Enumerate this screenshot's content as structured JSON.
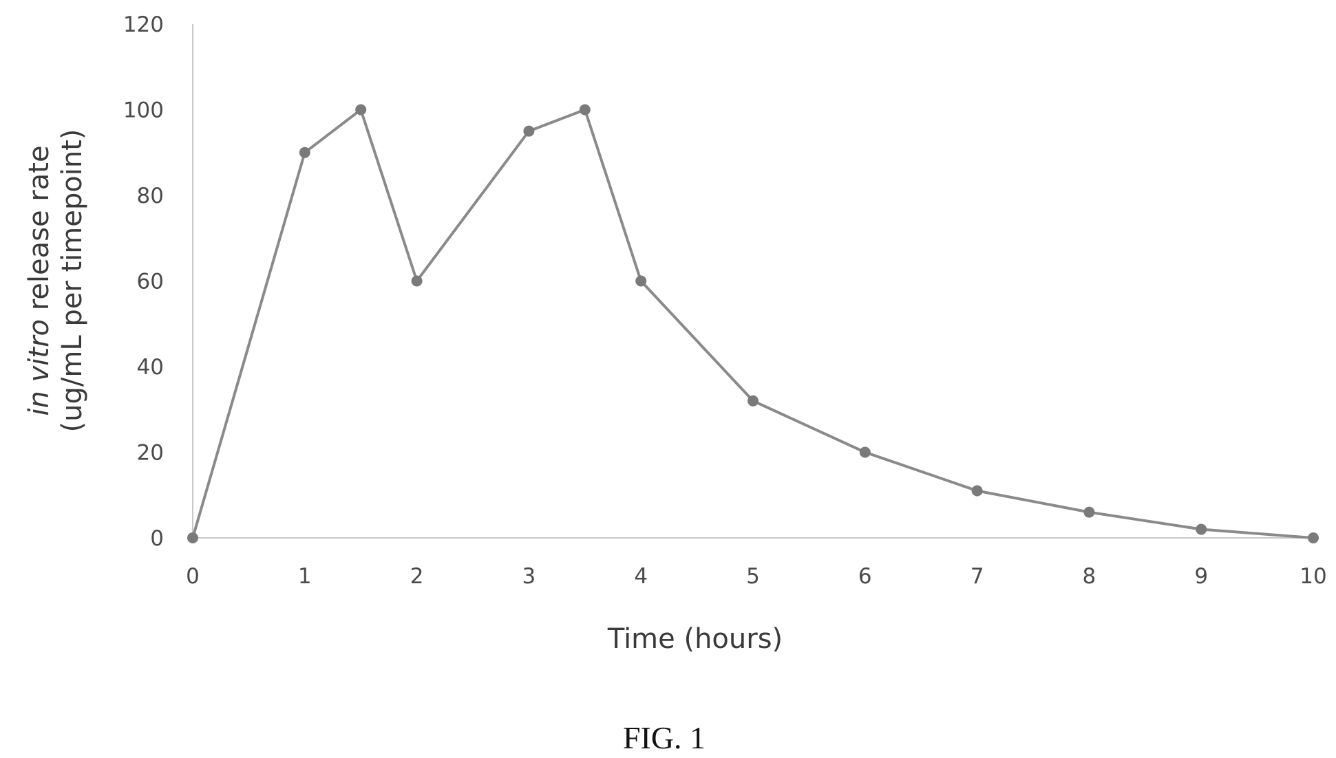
{
  "chart_data": {
    "type": "line",
    "x": [
      0,
      1,
      1.5,
      2,
      3,
      3.5,
      4,
      5,
      6,
      7,
      8,
      9,
      10
    ],
    "series": [
      {
        "values": [
          0,
          90,
          100,
          60,
          95,
          100,
          60,
          32,
          20,
          11,
          6,
          2,
          0
        ]
      }
    ],
    "xlabel": "Time (hours)",
    "ylabel_line1_italic": "in vitro",
    "ylabel_line1_rest": " release rate",
    "ylabel_line2": "(ug/mL per timepoint)",
    "xlim": [
      0,
      10
    ],
    "ylim": [
      0,
      120
    ],
    "xticks": [
      "0",
      "1",
      "2",
      "3",
      "4",
      "5",
      "6",
      "7",
      "8",
      "9",
      "10"
    ],
    "yticks": [
      "0",
      "20",
      "40",
      "60",
      "80",
      "100",
      "120"
    ],
    "grid": false,
    "line_color": "#8a8a8a",
    "marker_color": "#7a7a7a"
  },
  "caption": "FIG. 1"
}
